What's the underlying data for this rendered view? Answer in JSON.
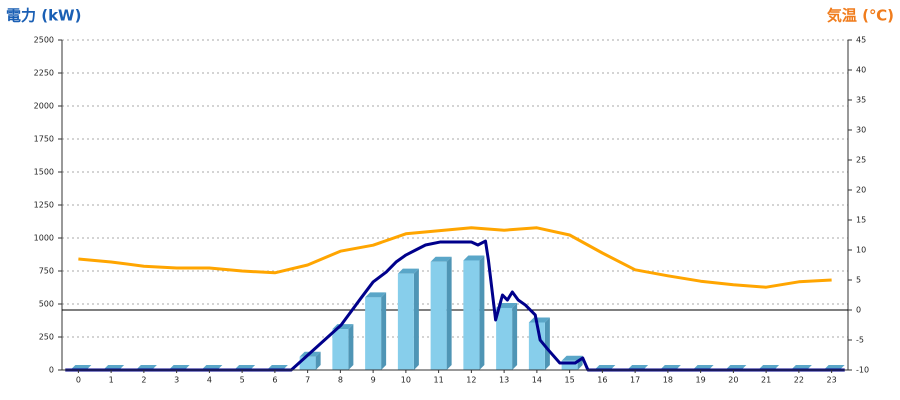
{
  "chart_data": {
    "type": "bar",
    "y_title": "電力 (kW)",
    "y2_title": "気温 (℃)",
    "y_title_color": "#1a5fb4",
    "y2_title_color": "#f07c1c",
    "categories": [
      "0",
      "1",
      "2",
      "3",
      "4",
      "5",
      "6",
      "7",
      "8",
      "9",
      "10",
      "11",
      "12",
      "13",
      "14",
      "15",
      "16",
      "17",
      "18",
      "19",
      "20",
      "21",
      "22",
      "23"
    ],
    "ylim": [
      0,
      2500
    ],
    "yticks": [
      0,
      250,
      500,
      750,
      1000,
      1250,
      1500,
      1750,
      2000,
      2250,
      2500
    ],
    "y2lim": [
      -10,
      45
    ],
    "y2ticks": [
      -10,
      -5,
      0,
      5,
      10,
      15,
      20,
      25,
      30,
      35,
      40,
      45
    ],
    "grid": true,
    "series": [
      {
        "type": "bar",
        "color": "#87ceeb",
        "values": [
          0,
          0,
          0,
          0,
          0,
          0,
          0,
          100,
          310,
          550,
          730,
          820,
          830,
          470,
          360,
          70,
          0,
          0,
          0,
          0,
          0,
          0,
          0,
          0
        ]
      },
      {
        "type": "line",
        "color": "#00008b",
        "x": [
          -0.4,
          6.5,
          8.02,
          8.63,
          9.0,
          9.4,
          9.7,
          10.0,
          10.3,
          10.6,
          11.06,
          12.0,
          12.2,
          12.43,
          12.52,
          12.74,
          12.95,
          13.1,
          13.25,
          13.43,
          13.65,
          13.95,
          14.1,
          14.35,
          14.7,
          15.17,
          15.4,
          15.56,
          23.4
        ],
        "values": [
          0,
          0,
          340,
          545,
          667,
          742,
          818,
          871,
          909,
          947,
          970,
          970,
          947,
          977,
          833,
          379,
          568,
          530,
          591,
          530,
          492,
          417,
          227,
          152,
          53,
          53,
          91,
          0,
          0
        ]
      },
      {
        "type": "line",
        "axis": "y2",
        "color": "#ffa500",
        "values": [
          8.5,
          8,
          7.3,
          7,
          7,
          6.5,
          6.2,
          7.5,
          9.8,
          10.8,
          12.7,
          13.2,
          13.7,
          13.3,
          13.7,
          12.5,
          9.5,
          6.7,
          5.7,
          4.8,
          4.2,
          3.8,
          4.7,
          5
        ]
      }
    ]
  }
}
